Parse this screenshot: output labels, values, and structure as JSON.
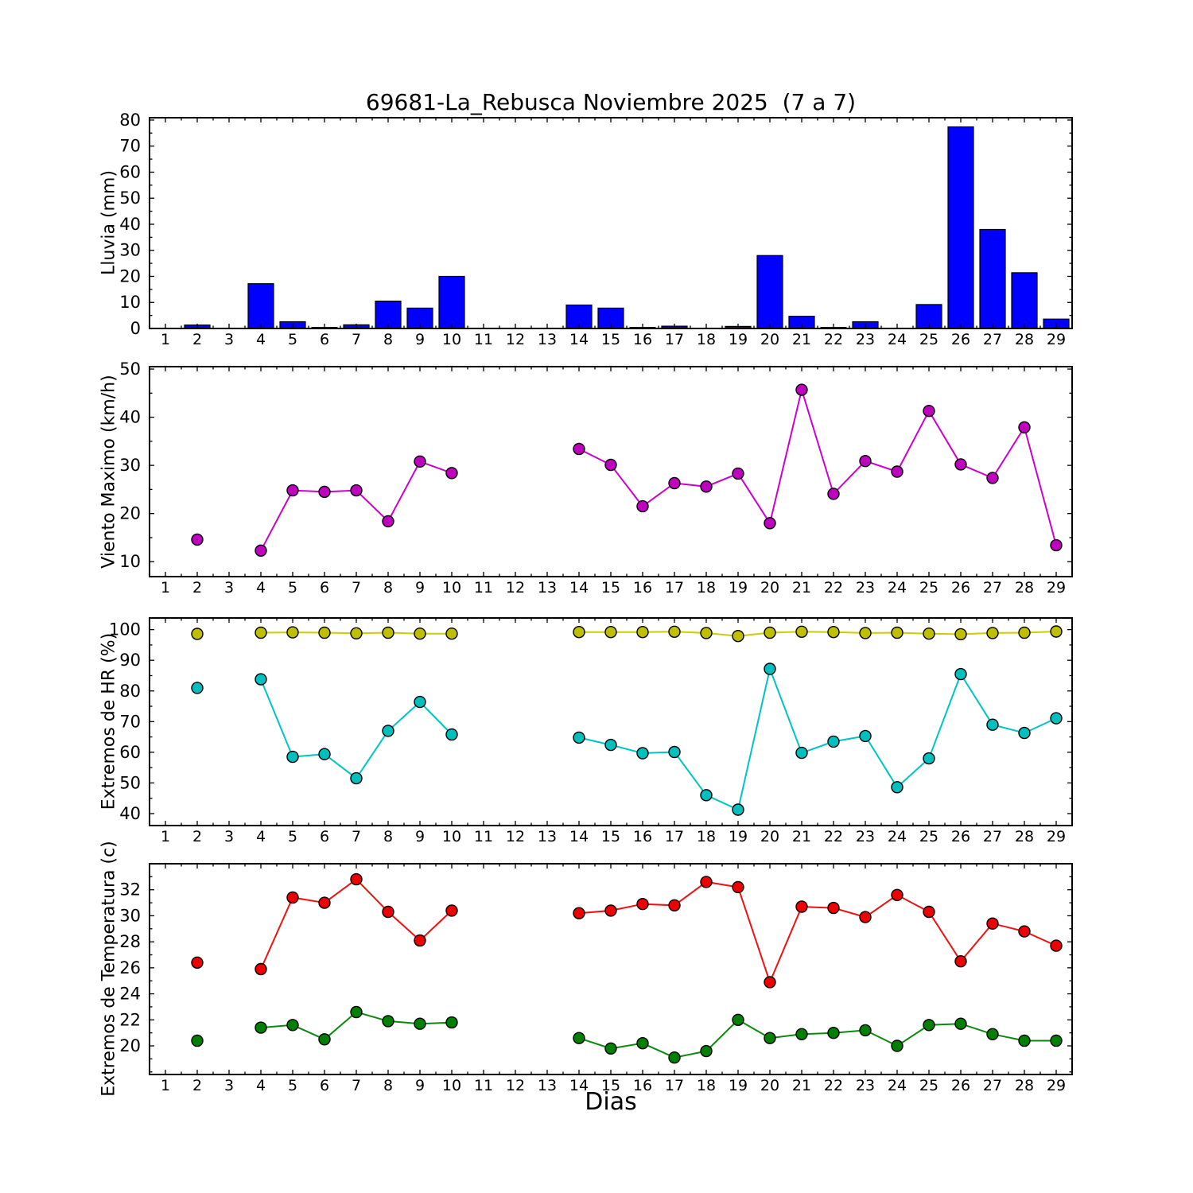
{
  "title": "69681-La_Rebusca Noviembre 2025  (7 a 7)",
  "xlabel": "Dias",
  "x_axis": {
    "day_min": 1,
    "day_max": 29
  },
  "colors": {
    "rain_bar": "#0000ff",
    "wind": "#bf00bf",
    "hr_max": "#bfbf00",
    "hr_min": "#00bfbf",
    "temp_max": "#ee0000",
    "temp_min": "#008000",
    "axis": "#000000"
  },
  "chart_data": [
    {
      "id": "rain",
      "type": "bar",
      "ylabel": "Lluvia (mm)",
      "ylim": [
        0,
        80.9
      ],
      "yticks": [
        0,
        10,
        20,
        30,
        40,
        50,
        60,
        70,
        80
      ],
      "y_minor_step": 5,
      "bar_color": "#0000ff",
      "days": [
        1,
        2,
        3,
        4,
        5,
        6,
        7,
        8,
        9,
        10,
        11,
        12,
        13,
        14,
        15,
        16,
        17,
        18,
        19,
        20,
        21,
        22,
        23,
        24,
        25,
        26,
        27,
        28,
        29
      ],
      "values": [
        0,
        1.3,
        0,
        17.2,
        2.6,
        0.4,
        1.4,
        10.5,
        7.8,
        20.0,
        0,
        0,
        0,
        9.0,
        7.8,
        0.4,
        0.9,
        0,
        0.8,
        28.0,
        4.7,
        0.4,
        2.6,
        0,
        9.2,
        77.4,
        38.0,
        21.4,
        3.6
      ]
    },
    {
      "id": "wind",
      "type": "line",
      "ylabel": "Viento Maximo (km/h)",
      "ylim": [
        6.9,
        50.5
      ],
      "yticks": [
        10,
        20,
        30,
        40,
        50
      ],
      "y_minor_step": 5,
      "series": [
        {
          "name": "viento-maximo",
          "color": "#bf00bf",
          "line_color": "#cc00cc",
          "days": [
            2,
            4,
            5,
            6,
            7,
            8,
            9,
            10,
            14,
            15,
            16,
            17,
            18,
            19,
            20,
            21,
            22,
            23,
            24,
            25,
            26,
            27,
            28,
            29
          ],
          "values": [
            14.6,
            12.3,
            24.8,
            24.5,
            24.8,
            18.4,
            30.8,
            28.4,
            33.4,
            30.1,
            21.5,
            26.3,
            25.6,
            28.3,
            18.0,
            45.7,
            24.1,
            30.9,
            28.7,
            41.3,
            30.2,
            27.4,
            37.9,
            13.4
          ]
        }
      ]
    },
    {
      "id": "hr",
      "type": "line",
      "ylabel": "Extremos de HR (%)",
      "ylim": [
        36.1,
        103.8
      ],
      "yticks": [
        40,
        50,
        60,
        70,
        80,
        90,
        100
      ],
      "y_minor_step": 5,
      "series": [
        {
          "name": "hr-max",
          "color": "#bfbf00",
          "line_color": "#cccc00",
          "days": [
            2,
            4,
            5,
            6,
            7,
            8,
            9,
            10,
            14,
            15,
            16,
            17,
            18,
            19,
            20,
            21,
            22,
            23,
            24,
            25,
            26,
            27,
            28,
            29
          ],
          "values": [
            98.6,
            99.0,
            99.1,
            99.0,
            98.8,
            99.0,
            98.7,
            98.7,
            99.2,
            99.2,
            99.2,
            99.3,
            98.9,
            97.9,
            99.0,
            99.3,
            99.2,
            98.9,
            99.0,
            98.7,
            98.5,
            98.9,
            99.0,
            99.4
          ]
        },
        {
          "name": "hr-min",
          "color": "#00bfbf",
          "line_color": "#00c4c4",
          "days": [
            2,
            4,
            5,
            6,
            7,
            8,
            9,
            10,
            14,
            15,
            16,
            17,
            18,
            19,
            20,
            21,
            22,
            23,
            24,
            25,
            26,
            27,
            28,
            29
          ],
          "values": [
            81.0,
            83.8,
            58.5,
            59.4,
            51.5,
            67.0,
            76.4,
            65.8,
            64.8,
            62.4,
            59.7,
            60.1,
            46.0,
            41.3,
            87.2,
            59.8,
            63.5,
            65.3,
            48.6,
            58.0,
            85.5,
            69.0,
            66.3,
            71.1
          ]
        }
      ]
    },
    {
      "id": "temp",
      "type": "line",
      "ylabel": "Extremos de Temperatura (c)",
      "ylim": [
        17.8,
        34.0
      ],
      "yticks": [
        20,
        22,
        24,
        26,
        28,
        30,
        32
      ],
      "y_minor_step": 1,
      "series": [
        {
          "name": "temp-max",
          "color": "#ee0000",
          "line_color": "#ee1111",
          "days": [
            2,
            4,
            5,
            6,
            7,
            8,
            9,
            10,
            14,
            15,
            16,
            17,
            18,
            19,
            20,
            21,
            22,
            23,
            24,
            25,
            26,
            27,
            28,
            29
          ],
          "values": [
            26.4,
            25.9,
            31.4,
            31.0,
            32.8,
            30.3,
            28.1,
            30.4,
            30.2,
            30.4,
            30.9,
            30.8,
            32.6,
            32.2,
            24.9,
            30.7,
            30.6,
            29.9,
            31.6,
            30.3,
            26.5,
            29.4,
            28.8,
            27.7
          ]
        },
        {
          "name": "temp-min",
          "color": "#008000",
          "line_color": "#0a8a0a",
          "days": [
            2,
            4,
            5,
            6,
            7,
            8,
            9,
            10,
            14,
            15,
            16,
            17,
            18,
            19,
            20,
            21,
            22,
            23,
            24,
            25,
            26,
            27,
            28,
            29
          ],
          "values": [
            20.4,
            21.4,
            21.6,
            20.5,
            22.6,
            21.9,
            21.7,
            21.8,
            20.6,
            19.8,
            20.2,
            19.1,
            19.6,
            22.0,
            20.6,
            20.9,
            21.0,
            21.2,
            20.0,
            21.6,
            21.7,
            20.9,
            20.4,
            20.4
          ]
        }
      ]
    }
  ]
}
